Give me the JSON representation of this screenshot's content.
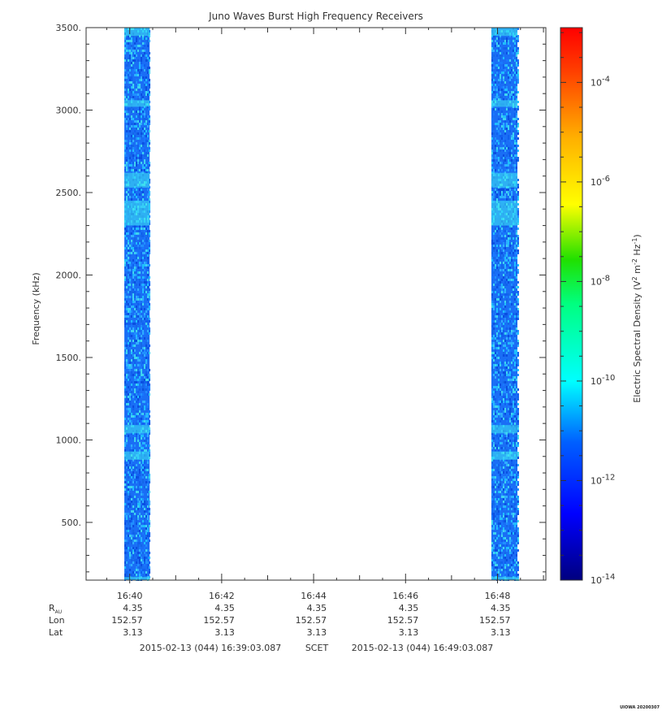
{
  "chart_data": {
    "type": "heatmap",
    "title": "Juno Waves Burst High Frequency Receivers",
    "ylabel": "Frequency (kHz)",
    "ylim": [
      150,
      3500
    ],
    "y_ticks": [
      "500.",
      "1000.",
      "1500.",
      "2000.",
      "2500.",
      "3000.",
      "3500."
    ],
    "y_tick_values": [
      500,
      1000,
      1500,
      2000,
      2500,
      3000,
      3500
    ],
    "x_range": [
      "16:39:03.087",
      "16:49:03.087"
    ],
    "x_ticks": [
      "16:40",
      "16:42",
      "16:44",
      "16:46",
      "16:48"
    ],
    "bursts": [
      {
        "start": "16:39:53",
        "end": "16:40:26"
      },
      {
        "start": "16:47:52",
        "end": "16:48:26"
      }
    ],
    "colorbar": {
      "label_base": "Electric Spectral Density (V",
      "scale": "log",
      "min_exp": -14,
      "max_exp": -2.9,
      "ticks": [
        "10-14",
        "10-12",
        "10-10",
        "10-8",
        "10-6",
        "10-4"
      ],
      "tick_exps": [
        -14,
        -12,
        -10,
        -8,
        -6,
        -4
      ]
    },
    "ephemeris": {
      "rows": [
        {
          "label": "R",
          "sub": "AU",
          "values": [
            "4.35",
            "4.35",
            "4.35",
            "4.35",
            "4.35"
          ]
        },
        {
          "label": "Lon",
          "sub": "",
          "values": [
            "152.57",
            "152.57",
            "152.57",
            "152.57",
            "152.57"
          ]
        },
        {
          "label": "Lat",
          "sub": "",
          "values": [
            "3.13",
            "3.13",
            "3.13",
            "3.13",
            "3.13"
          ]
        }
      ]
    },
    "footer": {
      "start": "2015-02-13 (044) 16:39:03.087",
      "middle": "SCET",
      "end": "2015-02-13 (044) 16:49:03.087"
    },
    "stamp": "UIOWA 20200307"
  }
}
